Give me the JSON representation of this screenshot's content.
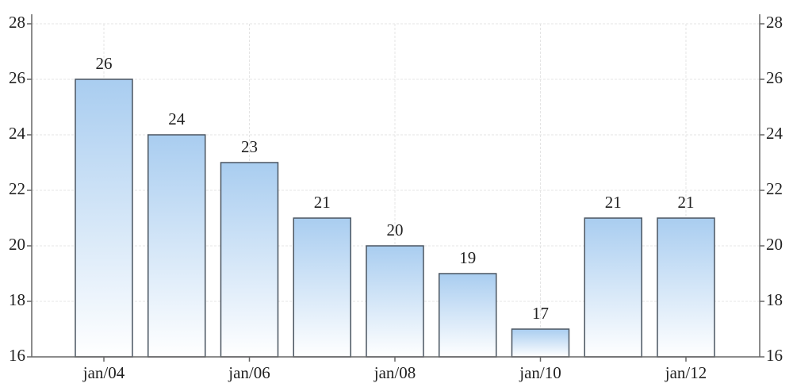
{
  "chart_data": {
    "type": "bar",
    "categories": [
      "jan/04",
      null,
      "jan/06",
      null,
      "jan/08",
      null,
      "jan/10",
      null,
      "jan/12"
    ],
    "values": [
      26,
      24,
      23,
      21,
      20,
      19,
      17,
      21,
      21
    ],
    "color": "#a9cdf0",
    "ylim": [
      16,
      28
    ],
    "yticks": [
      16,
      18,
      20,
      22,
      24,
      26,
      28
    ],
    "y2lim": [
      16,
      28
    ],
    "y2ticks": [
      16,
      18,
      20,
      22,
      24,
      26,
      28
    ],
    "grid": true
  }
}
